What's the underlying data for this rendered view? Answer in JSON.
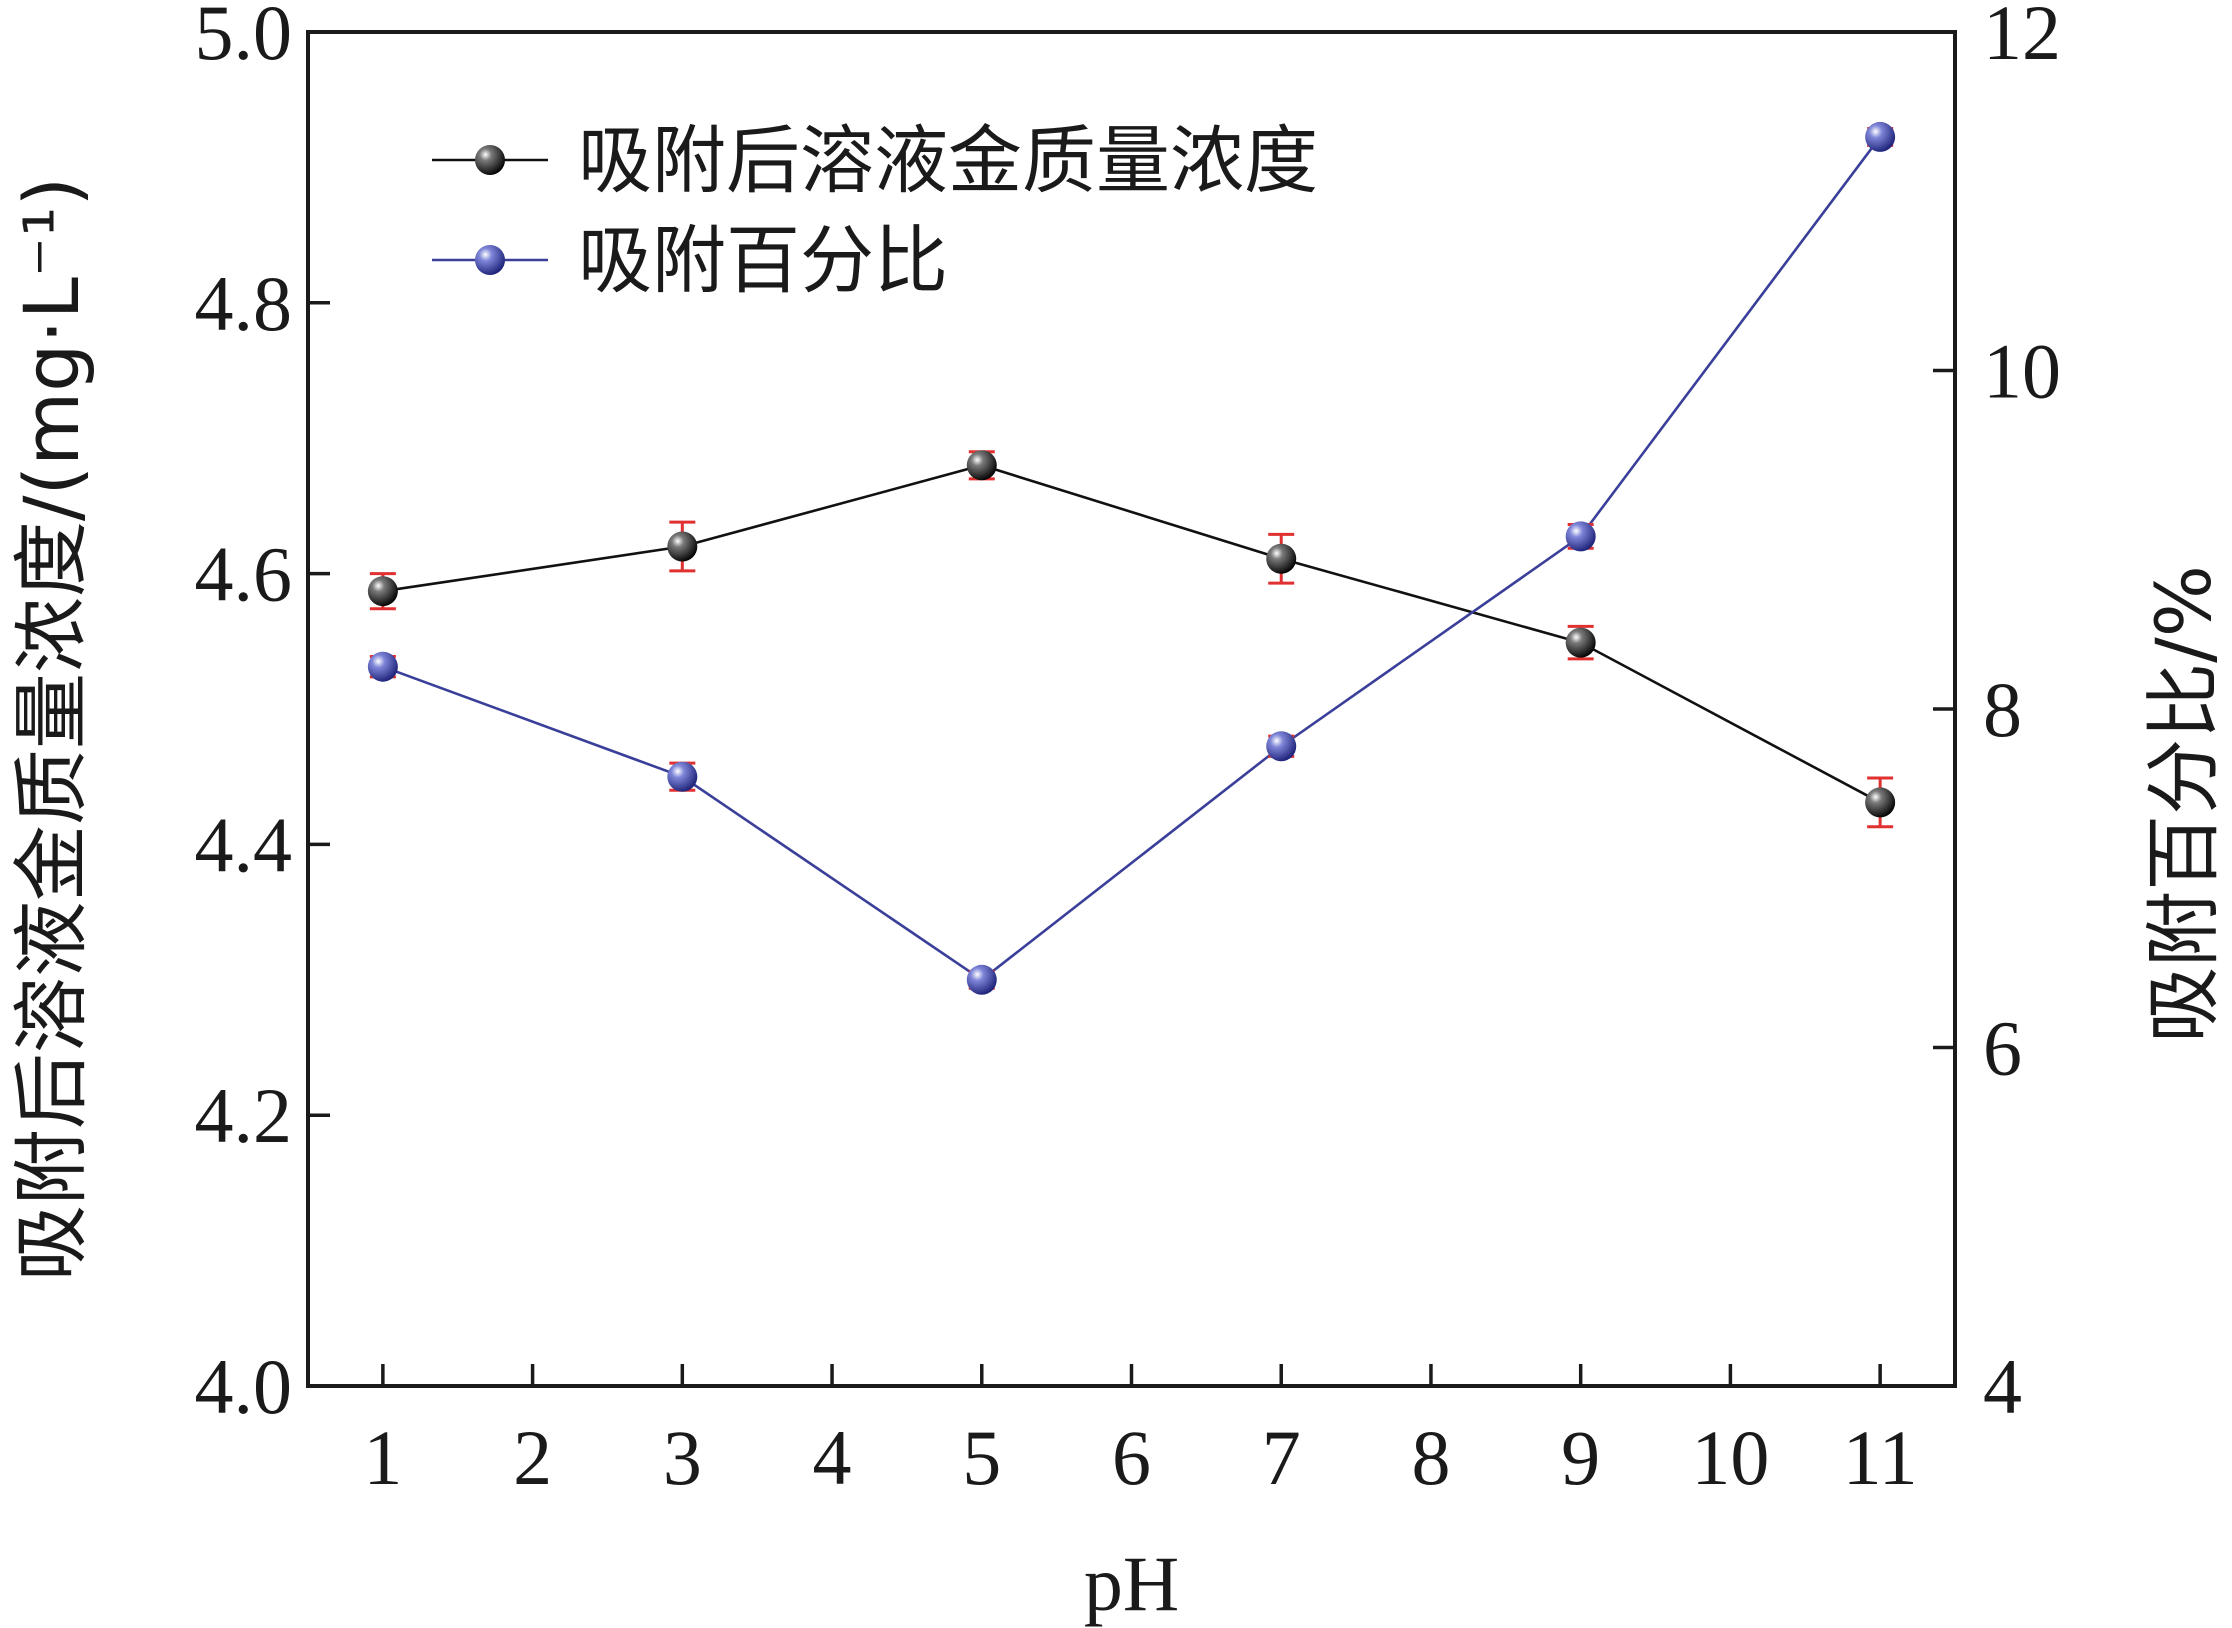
{
  "chart_data": {
    "type": "line",
    "title": "",
    "xlabel": "pH",
    "ylabel_left": "吸附后溶液金质量浓度/(mg·L⁻¹)",
    "ylabel_right": "吸附百分比/%",
    "x_ticks": [
      "1",
      "2",
      "3",
      "4",
      "5",
      "6",
      "7",
      "8",
      "9",
      "10",
      "11"
    ],
    "xlim": [
      0.5,
      11.5
    ],
    "ylim_left": [
      4.0,
      5.0
    ],
    "ylim_right": [
      4,
      12
    ],
    "y_ticks_left": [
      "4.0",
      "4.2",
      "4.4",
      "4.6",
      "4.8",
      "5.0"
    ],
    "y_ticks_right": [
      "4",
      "6",
      "8",
      "10",
      "12"
    ],
    "legend_position": "top-left",
    "series": [
      {
        "name": "吸附后溶液金质量浓度",
        "axis": "left",
        "color": "#111111",
        "x": [
          1,
          3,
          5,
          7,
          9,
          11
        ],
        "y": [
          4.587,
          4.62,
          4.68,
          4.611,
          4.549,
          4.431
        ],
        "error": [
          0.013,
          0.018,
          0.01,
          0.018,
          0.012,
          0.018
        ]
      },
      {
        "name": "吸附百分比",
        "axis": "right",
        "color": "#3a3f9a",
        "x": [
          1,
          3,
          5,
          7,
          9,
          11
        ],
        "y": [
          8.25,
          7.6,
          6.4,
          7.78,
          9.02,
          11.38
        ],
        "error": [
          0.06,
          0.08,
          0.05,
          0.06,
          0.07,
          0.05
        ]
      }
    ],
    "error_bar_color": "#e03030"
  }
}
